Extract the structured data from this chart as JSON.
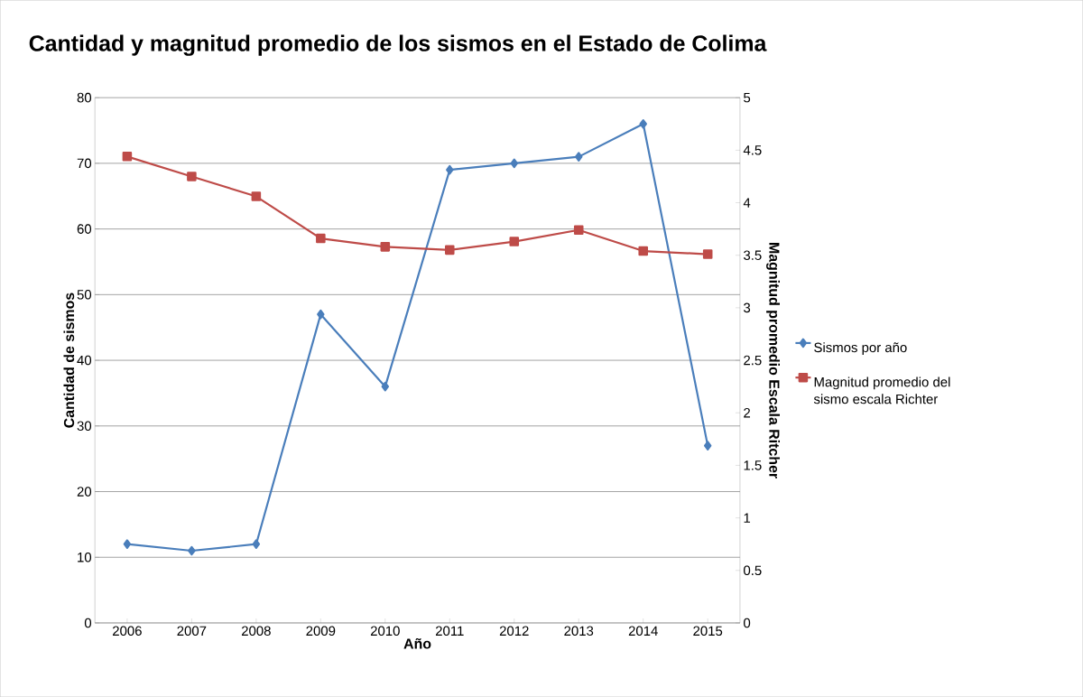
{
  "chart_data": {
    "type": "line",
    "title": "Cantidad y magnitud promedio de los sismos en el Estado de Colima",
    "xlabel": "Año",
    "ylabel": "Cantidad de sismos",
    "y2label": "Magnitud promedio Escala Ritcher",
    "categories": [
      "2006",
      "2007",
      "2008",
      "2009",
      "2010",
      "2011",
      "2012",
      "2013",
      "2014",
      "2015"
    ],
    "series": [
      {
        "name": "Sismos por año",
        "color": "#4a7ebb",
        "marker": "diamond",
        "values": [
          12,
          11,
          12,
          47,
          36,
          69,
          70,
          71,
          76,
          27
        ]
      },
      {
        "name": "Magnitud promedio del sismo escala Richter",
        "color": "#be4b48",
        "marker": "square",
        "axis": "y2",
        "values": [
          4.44,
          4.25,
          4.06,
          3.66,
          3.58,
          3.55,
          3.63,
          3.74,
          3.54,
          3.51
        ]
      }
    ],
    "ylim": [
      0,
      80
    ],
    "yticks": [
      0,
      10,
      20,
      30,
      40,
      50,
      60,
      70,
      80
    ],
    "y2lim": [
      0,
      5
    ],
    "y2ticks": [
      0,
      0.5,
      1,
      1.5,
      2,
      2.5,
      3,
      3.5,
      4,
      4.5,
      5
    ],
    "grid": "y",
    "legend": "right"
  }
}
